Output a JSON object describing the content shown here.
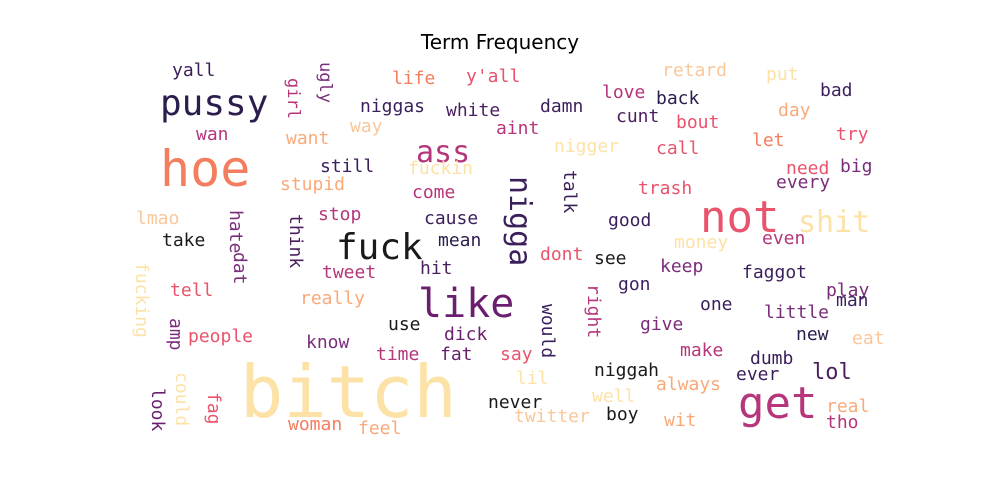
{
  "figure": {
    "title": "Term Frequency"
  },
  "word_cloud": {
    "palette_note_colors": [
      "#2c1d4d",
      "#6a1f6e",
      "#b5367a",
      "#e9536b",
      "#f47d5e",
      "#f9a978",
      "#fce2a6"
    ],
    "words": [
      {
        "text": "yall",
        "color": "#3b1f5b"
      },
      {
        "text": "pussy",
        "color": "#2c1d4d"
      },
      {
        "text": "hoe",
        "color": "#f47d5e"
      },
      {
        "text": "girl",
        "color": "#b5367a"
      },
      {
        "text": "ugly",
        "color": "#7a2d7a"
      },
      {
        "text": "life",
        "color": "#f47d5e"
      },
      {
        "text": "y'all",
        "color": "#e9536b"
      },
      {
        "text": "retard",
        "color": "#f9c79a"
      },
      {
        "text": "put",
        "color": "#fce2a6"
      },
      {
        "text": "bad",
        "color": "#3b1f5b"
      },
      {
        "text": "niggas",
        "color": "#3b1f5b"
      },
      {
        "text": "white",
        "color": "#4a1f5e"
      },
      {
        "text": "damn",
        "color": "#3b1f5b"
      },
      {
        "text": "love",
        "color": "#b5367a"
      },
      {
        "text": "back",
        "color": "#2c1d4d"
      },
      {
        "text": "day",
        "color": "#f9a978"
      },
      {
        "text": "wan",
        "color": "#b5367a"
      },
      {
        "text": "want",
        "color": "#f9a978"
      },
      {
        "text": "way",
        "color": "#f9c79a"
      },
      {
        "text": "aint",
        "color": "#b5367a"
      },
      {
        "text": "cunt",
        "color": "#4a1f5e"
      },
      {
        "text": "bout",
        "color": "#e9536b"
      },
      {
        "text": "let",
        "color": "#f47d5e"
      },
      {
        "text": "try",
        "color": "#e9536b"
      },
      {
        "text": "ass",
        "color": "#b5367a"
      },
      {
        "text": "nigger",
        "color": "#fce2a6"
      },
      {
        "text": "call",
        "color": "#e9536b"
      },
      {
        "text": "need",
        "color": "#e9536b"
      },
      {
        "text": "big",
        "color": "#7a2d7a"
      },
      {
        "text": "still",
        "color": "#3b1f5b"
      },
      {
        "text": "fuckin",
        "color": "#fce2a6"
      },
      {
        "text": "every",
        "color": "#7a2d7a"
      },
      {
        "text": "stupid",
        "color": "#f9a978"
      },
      {
        "text": "come",
        "color": "#b5367a"
      },
      {
        "text": "trash",
        "color": "#e9536b"
      },
      {
        "text": "nigga",
        "color": "#3b1f5b"
      },
      {
        "text": "talk",
        "color": "#3b1f5b"
      },
      {
        "text": "not",
        "color": "#e9536b"
      },
      {
        "text": "shit",
        "color": "#fce2a6"
      },
      {
        "text": "lmao",
        "color": "#f9c79a"
      },
      {
        "text": "hate",
        "color": "#7a2d7a"
      },
      {
        "text": "think",
        "color": "#4a1f5e"
      },
      {
        "text": "stop",
        "color": "#b5367a"
      },
      {
        "text": "cause",
        "color": "#3b1f5b"
      },
      {
        "text": "good",
        "color": "#3b1f5b"
      },
      {
        "text": "take",
        "color": "#1a1a1a"
      },
      {
        "text": "fuck",
        "color": "#1a1a1a"
      },
      {
        "text": "mean",
        "color": "#2c1d4d"
      },
      {
        "text": "money",
        "color": "#fce2a6"
      },
      {
        "text": "even",
        "color": "#b5367a"
      },
      {
        "text": "dat",
        "color": "#7a2d7a"
      },
      {
        "text": "tweet",
        "color": "#b5367a"
      },
      {
        "text": "dont",
        "color": "#e9536b"
      },
      {
        "text": "see",
        "color": "#1a1a1a"
      },
      {
        "text": "keep",
        "color": "#7a2d7a"
      },
      {
        "text": "fucking",
        "color": "#fce2a6"
      },
      {
        "text": "tell",
        "color": "#e9536b"
      },
      {
        "text": "hit",
        "color": "#4a1f5e"
      },
      {
        "text": "gon",
        "color": "#3b1f5b"
      },
      {
        "text": "faggot",
        "color": "#3b1f5b"
      },
      {
        "text": "play",
        "color": "#7a2d7a"
      },
      {
        "text": "really",
        "color": "#f9a978"
      },
      {
        "text": "like",
        "color": "#6a1f6e"
      },
      {
        "text": "right",
        "color": "#b5367a"
      },
      {
        "text": "one",
        "color": "#3b1f5b"
      },
      {
        "text": "little",
        "color": "#7a2d7a"
      },
      {
        "text": "man",
        "color": "#3b1f5b"
      },
      {
        "text": "amp",
        "color": "#7a2d7a"
      },
      {
        "text": "people",
        "color": "#e9536b"
      },
      {
        "text": "use",
        "color": "#1a1a1a"
      },
      {
        "text": "would",
        "color": "#3b1f5b"
      },
      {
        "text": "give",
        "color": "#7a2d7a"
      },
      {
        "text": "new",
        "color": "#2c1d4d"
      },
      {
        "text": "eat",
        "color": "#f9c79a"
      },
      {
        "text": "know",
        "color": "#7a2d7a"
      },
      {
        "text": "dick",
        "color": "#6a1f6e"
      },
      {
        "text": "say",
        "color": "#e9536b"
      },
      {
        "text": "make",
        "color": "#b5367a"
      },
      {
        "text": "dumb",
        "color": "#3b1f5b"
      },
      {
        "text": "time",
        "color": "#b5367a"
      },
      {
        "text": "fat",
        "color": "#6a1f6e"
      },
      {
        "text": "lol",
        "color": "#4a1f5e"
      },
      {
        "text": "bitch",
        "color": "#fce2a6"
      },
      {
        "text": "niggah",
        "color": "#1a1a1a"
      },
      {
        "text": "ever",
        "color": "#3b1f5b"
      },
      {
        "text": "lil",
        "color": "#fce2a6"
      },
      {
        "text": "always",
        "color": "#f9a978"
      },
      {
        "text": "look",
        "color": "#6a1f6e"
      },
      {
        "text": "could",
        "color": "#fce2a6"
      },
      {
        "text": "fag",
        "color": "#e9536b"
      },
      {
        "text": "never",
        "color": "#1a1a1a"
      },
      {
        "text": "well",
        "color": "#fce2a6"
      },
      {
        "text": "get",
        "color": "#b5367a"
      },
      {
        "text": "real",
        "color": "#f9a978"
      },
      {
        "text": "boy",
        "color": "#1a1a1a"
      },
      {
        "text": "twitter",
        "color": "#f9c79a"
      },
      {
        "text": "wit",
        "color": "#f9a978"
      },
      {
        "text": "woman",
        "color": "#f47d5e"
      },
      {
        "text": "feel",
        "color": "#f9a978"
      },
      {
        "text": "tho",
        "color": "#b5367a"
      }
    ]
  }
}
